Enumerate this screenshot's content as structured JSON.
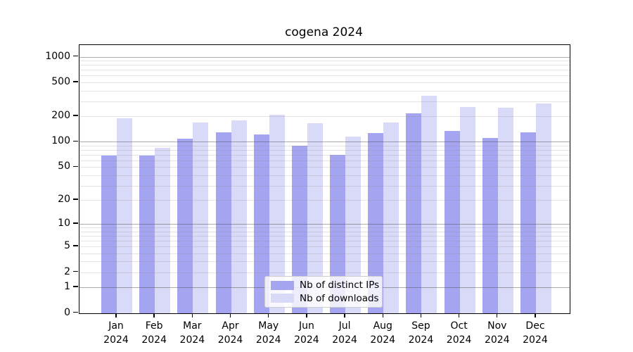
{
  "title": "cogena 2024",
  "legend": {
    "items": [
      {
        "label": "Nb of distinct IPs",
        "color": "#a4a4f0"
      },
      {
        "label": "Nb of downloads",
        "color": "#d9d9f8"
      }
    ]
  },
  "chart_data": {
    "type": "bar",
    "title": "cogena 2024",
    "categories": [
      "Jan 2024",
      "Feb 2024",
      "Mar 2024",
      "Apr 2024",
      "May 2024",
      "Jun 2024",
      "Jul 2024",
      "Aug 2024",
      "Sep 2024",
      "Oct 2024",
      "Nov 2024",
      "Dec 2024"
    ],
    "series": [
      {
        "name": "Nb of distinct IPs",
        "color": "#a4a4f0",
        "values": [
          68,
          68,
          108,
          130,
          123,
          89,
          70,
          127,
          215,
          133,
          111,
          129
        ]
      },
      {
        "name": "Nb of downloads",
        "color": "#d9d9f8",
        "values": [
          190,
          84,
          170,
          180,
          207,
          164,
          116,
          168,
          345,
          258,
          250,
          280
        ]
      }
    ],
    "y_scale": "log1p",
    "y_ticks": [
      0,
      1,
      2,
      5,
      10,
      20,
      50,
      100,
      200,
      500,
      1000
    ],
    "ylim": [
      0,
      1370
    ],
    "grid": true,
    "legend_position": "lower center"
  }
}
